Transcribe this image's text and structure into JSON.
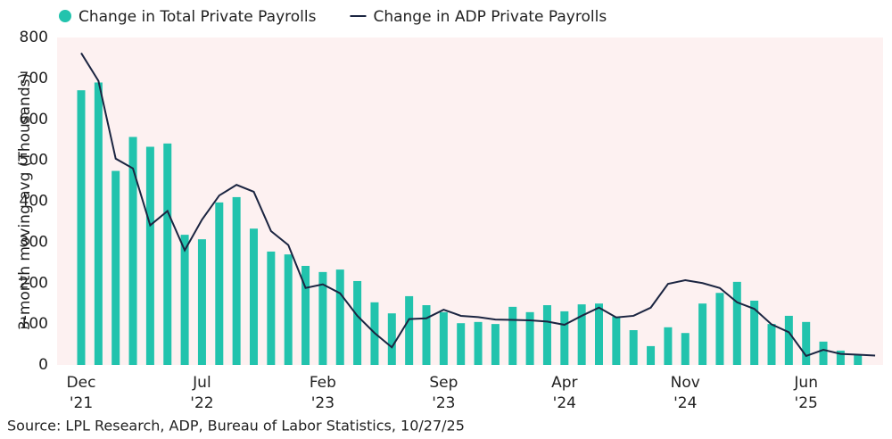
{
  "chart_data": {
    "type": "bar_line",
    "y_label": "3-month moving avg (Thousands)",
    "source": "Source: LPL Research, ADP, Bureau of Labor Statistics, 10/27/25",
    "categories": [
      "Dec '21",
      null,
      null,
      null,
      null,
      null,
      null,
      "Jul '22",
      null,
      null,
      null,
      null,
      null,
      null,
      "Feb '23",
      null,
      null,
      null,
      null,
      null,
      null,
      "Sep '23",
      null,
      null,
      null,
      null,
      null,
      null,
      "Apr '24",
      null,
      null,
      null,
      null,
      null,
      null,
      "Nov '24",
      null,
      null,
      null,
      null,
      null,
      null,
      "Jun '25",
      null,
      null,
      null,
      null
    ],
    "series": [
      {
        "name": "Change in Total Private Payrolls",
        "kind": "bar",
        "color": "#22c3ad",
        "values": [
          671,
          690,
          474,
          557,
          533,
          541,
          318,
          307,
          397,
          410,
          333,
          277,
          270,
          242,
          227,
          233,
          205,
          153,
          126,
          168,
          146,
          129,
          102,
          105,
          100,
          142,
          129,
          146,
          131,
          148,
          150,
          118,
          85,
          46,
          92,
          78,
          150,
          176,
          203,
          157,
          100,
          120,
          105,
          57,
          35,
          26,
          null
        ]
      },
      {
        "name": "Change in ADP Private Payrolls",
        "kind": "line",
        "color": "#1b2541",
        "values": [
          762,
          694,
          504,
          480,
          341,
          376,
          280,
          355,
          414,
          440,
          423,
          327,
          293,
          188,
          197,
          175,
          120,
          78,
          43,
          112,
          114,
          135,
          120,
          117,
          111,
          110,
          109,
          106,
          98,
          120,
          140,
          116,
          120,
          140,
          198,
          207,
          200,
          188,
          153,
          137,
          99,
          80,
          22,
          37,
          27,
          25,
          23
        ]
      }
    ],
    "ylim": [
      0,
      800
    ],
    "yticks": [
      0,
      100,
      200,
      300,
      400,
      500,
      600,
      700,
      800
    ],
    "grid": false,
    "plot_background": "#fdf1f1"
  }
}
